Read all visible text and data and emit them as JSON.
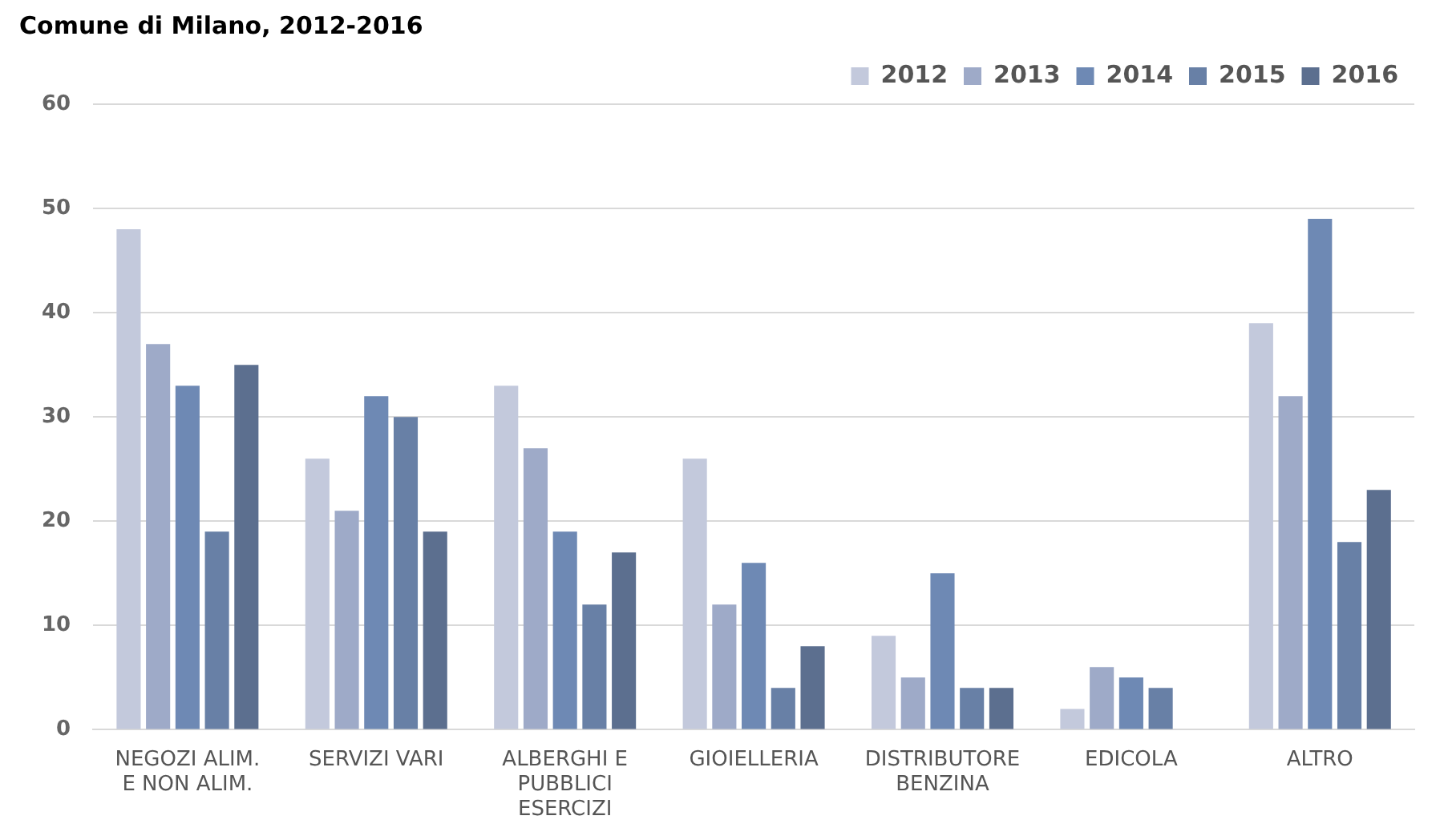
{
  "chart_data": {
    "type": "bar",
    "title": "Comune di Milano, 2012-2016",
    "categories": [
      "NEGOZI ALIM. E NON ALIM.",
      "SERVIZI VARI",
      "ALBERGHI E PUBBLICI ESERCIZI",
      "GIOIELLERIA",
      "DISTRIBUTORE BENZINA",
      "EDICOLA",
      "ALTRO"
    ],
    "series": [
      {
        "name": "2012",
        "color": "#c3c9dc",
        "values": [
          48,
          26,
          33,
          26,
          9,
          2,
          39
        ]
      },
      {
        "name": "2013",
        "color": "#9eaac8",
        "values": [
          37,
          21,
          27,
          12,
          5,
          6,
          32
        ]
      },
      {
        "name": "2014",
        "color": "#6e89b4",
        "values": [
          33,
          32,
          19,
          16,
          15,
          5,
          49
        ]
      },
      {
        "name": "2015",
        "color": "#6880a6",
        "values": [
          19,
          30,
          12,
          4,
          4,
          4,
          18
        ]
      },
      {
        "name": "2016",
        "color": "#5c6f8f",
        "values": [
          35,
          19,
          17,
          8,
          4,
          null,
          23
        ]
      }
    ],
    "ylim": [
      0,
      60
    ],
    "yticks": [
      0,
      10,
      20,
      30,
      40,
      50,
      60
    ],
    "grid": "y",
    "legend": "top right"
  }
}
